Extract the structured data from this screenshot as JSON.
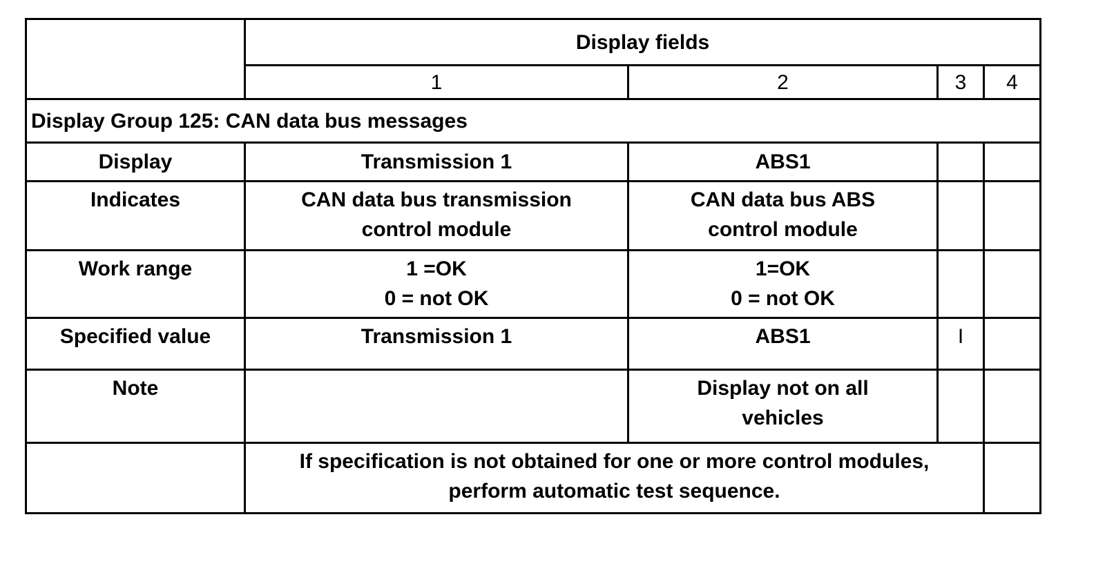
{
  "header": {
    "title": "Display fields",
    "field_numbers": [
      "1",
      "2",
      "3",
      "4"
    ]
  },
  "group_title": "Display Group 125: CAN data bus messages",
  "rows": [
    {
      "label": "Display",
      "field1": "Transmission 1",
      "field2": "ABS1",
      "field3": "",
      "field4": ""
    },
    {
      "label": "Indicates",
      "field1": "CAN data bus transmission control module",
      "field2": "CAN data bus ABS control module",
      "field3": "",
      "field4": ""
    },
    {
      "label": "Work range",
      "field1": "1 =OK\n0 = not OK",
      "field2": "1=OK\n0 = not OK",
      "field3": "",
      "field4": ""
    },
    {
      "label": "Specified value",
      "field1": "Transmission 1",
      "field2": "ABS1",
      "field3": "I",
      "field4": ""
    },
    {
      "label": "Note",
      "field1": "",
      "field2": "Display not on all vehicles",
      "field3": "",
      "field4": ""
    }
  ],
  "footer_note": "If specification is not obtained for one or more control modules, perform automatic test sequence."
}
